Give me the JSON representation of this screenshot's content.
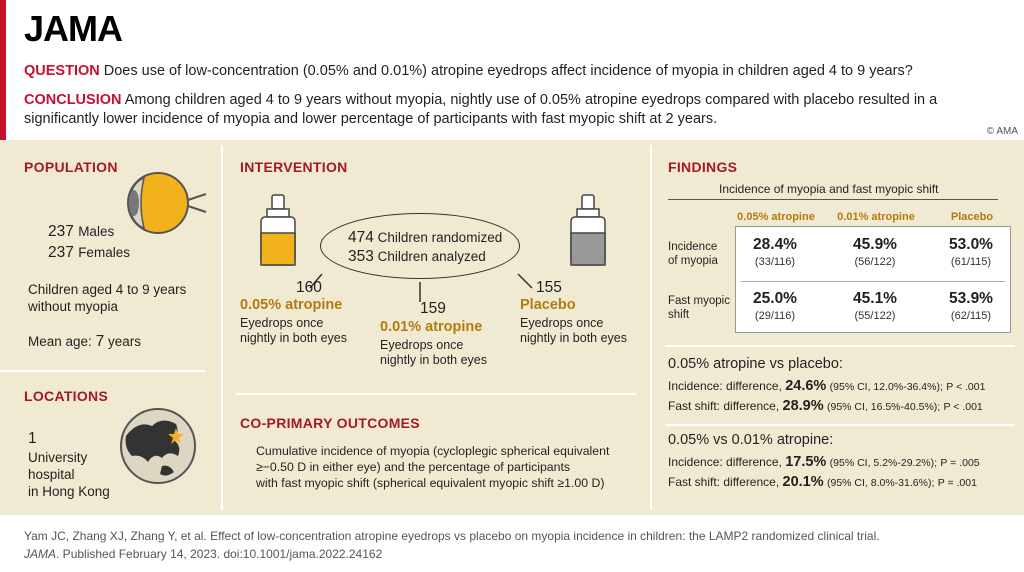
{
  "header": {
    "logo": "JAMA",
    "question_label": "QUESTION",
    "question": "Does use of low-concentration (0.05% and 0.01%) atropine eyedrops affect incidence of myopia in children aged 4 to 9 years?",
    "conclusion_label": "CONCLUSION",
    "conclusion": "Among children aged 4 to 9 years without myopia, nightly use of 0.05% atropine eyedrops compared with placebo resulted in a significantly lower incidence of myopia and lower percentage of participants with fast myopic shift at 2 years.",
    "copyright": "© AMA"
  },
  "population": {
    "title": "POPULATION",
    "males": "237",
    "males_label": "Males",
    "females": "237",
    "females_label": "Females",
    "desc": "Children aged 4 to 9 years without myopia",
    "mean_age_label": "Mean age:",
    "mean_age_value": "7",
    "mean_age_unit": "years"
  },
  "locations": {
    "title": "LOCATIONS",
    "count": "1",
    "desc_line1": "University",
    "desc_line2": "hospital",
    "desc_line3": "in Hong Kong"
  },
  "intervention": {
    "title": "INTERVENTION",
    "randomized_n": "474",
    "randomized_label": "Children randomized",
    "analyzed_n": "353",
    "analyzed_label": "Children analyzed",
    "arms": [
      {
        "n": "160",
        "name": "0.05% atropine",
        "desc_line1": "Eyedrops once",
        "desc_line2": "nightly in both eyes"
      },
      {
        "n": "159",
        "name": "0.01% atropine",
        "desc_line1": "Eyedrops once",
        "desc_line2": "nightly in both eyes"
      },
      {
        "n": "155",
        "name": "Placebo",
        "desc_line1": "Eyedrops once",
        "desc_line2": "nightly in both eyes"
      }
    ]
  },
  "outcomes": {
    "title": "CO-PRIMARY OUTCOMES",
    "line1": "Cumulative incidence of myopia (cycloplegic spherical equivalent",
    "line2": "≥−0.50 D in either eye) and the percentage of participants",
    "line3": "with fast myopic shift (spherical equivalent myopic shift ≥1.00 D)"
  },
  "findings": {
    "title": "FINDINGS",
    "subtitle": "Incidence of myopia and fast myopic shift",
    "columns": [
      "0.05% atropine",
      "0.01% atropine",
      "Placebo"
    ],
    "rows": [
      {
        "label_line1": "Incidence",
        "label_line2": "of myopia",
        "cells": [
          {
            "pct": "28.4%",
            "frac": "(33/116)"
          },
          {
            "pct": "45.9%",
            "frac": "(56/122)"
          },
          {
            "pct": "53.0%",
            "frac": "(61/115)"
          }
        ]
      },
      {
        "label_line1": "Fast myopic",
        "label_line2": "shift",
        "cells": [
          {
            "pct": "25.0%",
            "frac": "(29/116)"
          },
          {
            "pct": "45.1%",
            "frac": "(55/122)"
          },
          {
            "pct": "53.9%",
            "frac": "(62/115)"
          }
        ]
      }
    ],
    "comparisons": [
      {
        "title": "0.05% atropine vs placebo:",
        "lines": [
          {
            "prefix": "Incidence: difference,",
            "value": "24.6%",
            "ci": "(95% CI, 12.0%-36.4%);",
            "p": "P < .001"
          },
          {
            "prefix": "Fast shift: difference,",
            "value": "28.9%",
            "ci": "(95% CI, 16.5%-40.5%);",
            "p": "P < .001"
          }
        ]
      },
      {
        "title": "0.05% vs 0.01% atropine:",
        "lines": [
          {
            "prefix": "Incidence: difference,",
            "value": "17.5%",
            "ci": "(95% CI, 5.2%-29.2%);",
            "p": "P = .005"
          },
          {
            "prefix": "Fast shift: difference,",
            "value": "20.1%",
            "ci": "(95% CI, 8.0%-31.6%);",
            "p": "P = .001"
          }
        ]
      }
    ]
  },
  "citation": {
    "line1": "Yam JC, Zhang XJ, Zhang Y, et al. Effect of low-concentration atropine eyedrops vs placebo on myopia incidence in children: the LAMP2 randomized clinical trial.",
    "journal": "JAMA",
    "line2_rest": ". Published February 14, 2023. doi:10.1001/jama.2022.24162"
  },
  "colors": {
    "accent_red": "#c8102e",
    "panel_beige": "#f1ead3",
    "highlight_orange": "#b37a10",
    "eye_yellow": "#f2b21c"
  }
}
